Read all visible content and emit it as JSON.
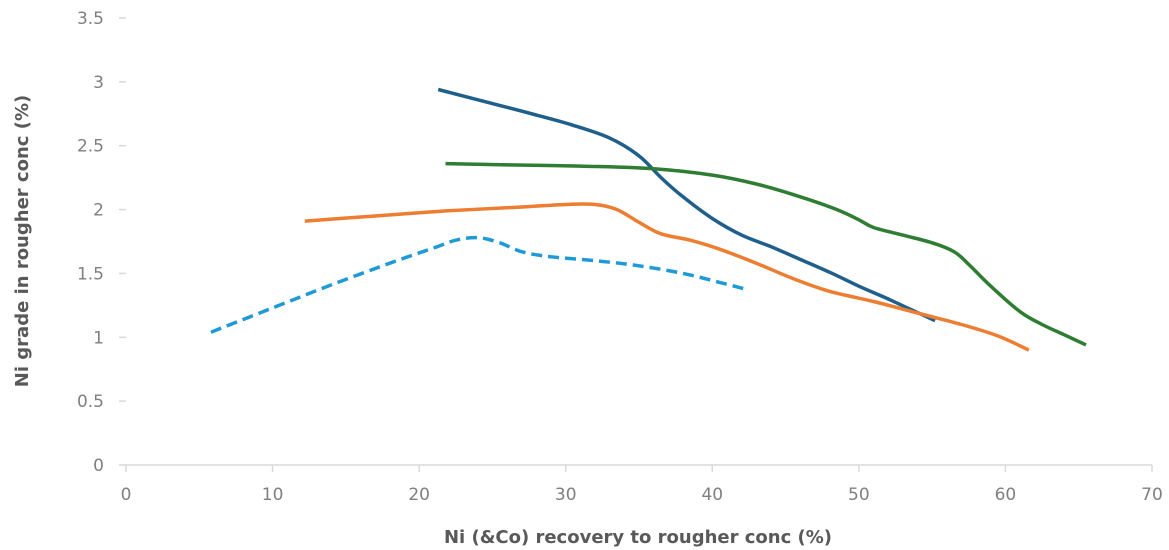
{
  "chart_data": {
    "type": "line",
    "title": "",
    "xlabel": "Ni (&Co) recovery to rougher conc (%)",
    "ylabel": "Ni grade in rougher conc (%)",
    "xlim": [
      0,
      70
    ],
    "ylim": [
      0,
      3.5
    ],
    "x_ticks": [
      0,
      10,
      20,
      30,
      40,
      50,
      60,
      70
    ],
    "y_ticks": [
      0,
      0.5,
      1,
      1.5,
      2,
      2.5,
      3,
      3.5
    ],
    "x_tick_labels": [
      "0",
      "10",
      "20",
      "30",
      "40",
      "50",
      "60",
      "70"
    ],
    "y_tick_labels": [
      "0",
      "0.5",
      "1",
      "1.5",
      "2",
      "2.5",
      "3",
      "3.5"
    ],
    "grid": false,
    "legend": "none",
    "series": [
      {
        "color": "#1f5f8b",
        "style": "solid",
        "points": [
          [
            21.3,
            2.94
          ],
          [
            25,
            2.83
          ],
          [
            28,
            2.74
          ],
          [
            30.5,
            2.66
          ],
          [
            33,
            2.56
          ],
          [
            35,
            2.42
          ],
          [
            36.5,
            2.25
          ],
          [
            38,
            2.1
          ],
          [
            40,
            1.93
          ],
          [
            42,
            1.8
          ],
          [
            44,
            1.71
          ],
          [
            46,
            1.61
          ],
          [
            48,
            1.51
          ],
          [
            50,
            1.4
          ],
          [
            52,
            1.3
          ],
          [
            53.5,
            1.22
          ],
          [
            55.2,
            1.13
          ]
        ]
      },
      {
        "color": "#2e7d32",
        "style": "solid",
        "points": [
          [
            21.8,
            2.36
          ],
          [
            26,
            2.35
          ],
          [
            31,
            2.34
          ],
          [
            36,
            2.32
          ],
          [
            40,
            2.27
          ],
          [
            43,
            2.2
          ],
          [
            46,
            2.1
          ],
          [
            48.5,
            2.0
          ],
          [
            50,
            1.92
          ],
          [
            51,
            1.86
          ],
          [
            53,
            1.8
          ],
          [
            55,
            1.74
          ],
          [
            56.5,
            1.67
          ],
          [
            57.5,
            1.57
          ],
          [
            59,
            1.4
          ],
          [
            61,
            1.2
          ],
          [
            62.5,
            1.1
          ],
          [
            64,
            1.02
          ],
          [
            65.5,
            0.94
          ]
        ]
      },
      {
        "color": "#ed7d31",
        "style": "solid",
        "points": [
          [
            12.2,
            1.91
          ],
          [
            17,
            1.95
          ],
          [
            22,
            1.99
          ],
          [
            27,
            2.02
          ],
          [
            30,
            2.04
          ],
          [
            32,
            2.04
          ],
          [
            33.5,
            2.0
          ],
          [
            35,
            1.9
          ],
          [
            36.5,
            1.81
          ],
          [
            38.5,
            1.76
          ],
          [
            40.5,
            1.69
          ],
          [
            43,
            1.58
          ],
          [
            45.5,
            1.46
          ],
          [
            48,
            1.36
          ],
          [
            51,
            1.28
          ],
          [
            54,
            1.19
          ],
          [
            57,
            1.1
          ],
          [
            59.5,
            1.01
          ],
          [
            61.6,
            0.9
          ]
        ]
      },
      {
        "color": "#1e9bd7",
        "style": "dashed",
        "points": [
          [
            5.8,
            1.04
          ],
          [
            10,
            1.23
          ],
          [
            14,
            1.41
          ],
          [
            18,
            1.58
          ],
          [
            21,
            1.7
          ],
          [
            22.5,
            1.76
          ],
          [
            24,
            1.78
          ],
          [
            25.5,
            1.74
          ],
          [
            27,
            1.67
          ],
          [
            29,
            1.63
          ],
          [
            32,
            1.6
          ],
          [
            35,
            1.56
          ],
          [
            38,
            1.5
          ],
          [
            40.5,
            1.43
          ],
          [
            42.5,
            1.37
          ]
        ]
      }
    ]
  }
}
